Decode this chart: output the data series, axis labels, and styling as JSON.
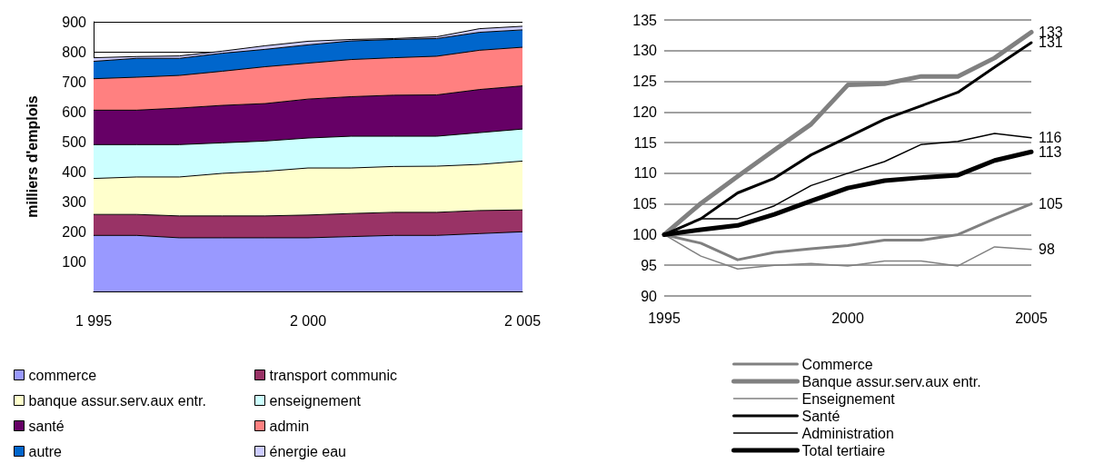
{
  "chart_data": [
    {
      "type": "area",
      "stacked": true,
      "ylabel": "milliers d'emplois",
      "x": [
        1995,
        1996,
        1997,
        1998,
        1999,
        2000,
        2001,
        2002,
        2003,
        2004,
        2005
      ],
      "xlim": [
        1995,
        2005
      ],
      "xticks": [
        {
          "value": 1995,
          "label": "1 995"
        },
        {
          "value": 2000,
          "label": "2 000"
        },
        {
          "value": 2005,
          "label": "2 005"
        }
      ],
      "ylim": [
        0,
        900
      ],
      "yticks": [
        100,
        200,
        300,
        400,
        500,
        600,
        700,
        800,
        900
      ],
      "grid": "y",
      "legend": "bottom",
      "series": [
        {
          "name": "commerce",
          "color": "#9999ff",
          "values": [
            187,
            187,
            179,
            179,
            179,
            179,
            183,
            187,
            187,
            193,
            199
          ]
        },
        {
          "name": "transport communic",
          "color": "#993366",
          "values": [
            70,
            70,
            73,
            73,
            73,
            76,
            77,
            77,
            77,
            77,
            73
          ]
        },
        {
          "name": "banque assur.serv.aux entr.",
          "color": "#ffffcc",
          "values": [
            120,
            125,
            130,
            142,
            149,
            157,
            152,
            153,
            154,
            154,
            163
          ]
        },
        {
          "name": "enseignement",
          "color": "#ccffff",
          "values": [
            113,
            108,
            108,
            102,
            101,
            100,
            106,
            101,
            100,
            106,
            107
          ]
        },
        {
          "name": "santé",
          "color": "#660066",
          "values": [
            115,
            115,
            122,
            125,
            125,
            130,
            132,
            137,
            138,
            144,
            144
          ]
        },
        {
          "name": "admin",
          "color": "#ff8080",
          "values": [
            105,
            110,
            109,
            114,
            123,
            120,
            124,
            125,
            129,
            131,
            129
          ]
        },
        {
          "name": "autre",
          "color": "#0066cc",
          "values": [
            58,
            63,
            57,
            60,
            58,
            61,
            62,
            61,
            59,
            60,
            58
          ]
        },
        {
          "name": "énergie eau",
          "color": "#ccccff",
          "values": [
            12,
            6,
            8,
            7,
            12,
            12,
            5,
            3,
            6,
            12,
            12
          ]
        }
      ]
    },
    {
      "type": "line",
      "x": [
        1995,
        1996,
        1997,
        1998,
        1999,
        2000,
        2001,
        2002,
        2003,
        2004,
        2005
      ],
      "xlim": [
        1995,
        2005
      ],
      "xticks": [
        1995,
        2000,
        2005
      ],
      "ylim": [
        90,
        135
      ],
      "yticks": [
        90,
        95,
        100,
        105,
        110,
        115,
        120,
        125,
        130,
        135
      ],
      "grid": "y",
      "legend": "bottom",
      "marker": "none",
      "series": [
        {
          "name": "Commerce",
          "color": "#808080",
          "values": [
            100,
            98.6,
            95.9,
            97.1,
            97.7,
            98.2,
            99.1,
            99.1,
            100,
            102.6,
            105
          ],
          "value_labels": [
            null,
            null,
            null,
            null,
            null,
            null,
            null,
            null,
            null,
            null,
            "105"
          ]
        },
        {
          "name": "Banque assur.serv.aux entr.",
          "color": "#808080",
          "values": [
            100,
            105.1,
            109.5,
            113.8,
            118,
            124.4,
            124.6,
            125.8,
            125.8,
            128.8,
            133
          ],
          "value_labels": [
            null,
            null,
            null,
            null,
            null,
            null,
            null,
            null,
            null,
            null,
            "133"
          ]
        },
        {
          "name": "Enseignement",
          "color": "#808080",
          "values": [
            100,
            96.5,
            94.4,
            95,
            95.3,
            94.9,
            95.7,
            95.7,
            94.9,
            98,
            97.6
          ],
          "value_labels": [
            null,
            null,
            null,
            null,
            null,
            null,
            null,
            null,
            null,
            null,
            "98"
          ]
        },
        {
          "name": "Santé",
          "color": "#000000",
          "values": [
            100,
            102.6,
            106.8,
            109.2,
            113,
            115.9,
            118.8,
            121,
            123.2,
            127.3,
            131.3
          ],
          "value_labels": [
            null,
            null,
            null,
            null,
            null,
            null,
            null,
            null,
            null,
            null,
            "131"
          ]
        },
        {
          "name": "Administration",
          "color": "#000000",
          "values": [
            100,
            102.6,
            102.6,
            104.7,
            108,
            110,
            111.9,
            114.7,
            115.2,
            116.5,
            115.8
          ],
          "value_labels": [
            null,
            null,
            null,
            null,
            null,
            null,
            null,
            null,
            null,
            null,
            "116"
          ]
        },
        {
          "name": "Total tertiaire",
          "color": "#000000",
          "values": [
            100,
            100.8,
            101.5,
            103.3,
            105.5,
            107.6,
            108.8,
            109.3,
            109.7,
            112.1,
            113.5
          ],
          "value_labels": [
            null,
            null,
            null,
            null,
            null,
            null,
            null,
            null,
            null,
            null,
            "113"
          ]
        }
      ]
    }
  ]
}
